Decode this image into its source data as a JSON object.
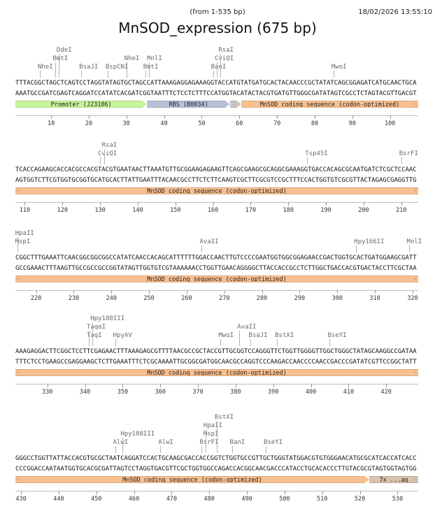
{
  "header": {
    "range": "(from 1-535 bp)",
    "timestamp": "18/02/2026 13:55:10",
    "title": "MnSOD_expression (675 bp)"
  },
  "colors": {
    "promoter": "#c6f59a",
    "rbs": "#b6c1d9",
    "spacer": "#c9c3c3",
    "cds": "#f9c08f",
    "tag": "#d9c2ad",
    "enzyme_text": "#6a6a6a"
  },
  "rows": [
    {
      "start": 1,
      "top": "TTTACGGCTAGCTCAGTCCTAGGTATAGTGCTAGCCATTAAAGAGGAGAAAGGTACCATGTATGATGCACTACAACCCGCTATATCAGCGGAGATCATGCAACTGCA",
      "bottom": "AAATGCCGATCGAGTCAGGATCCATATCACGATCGGTAATTTCTCCTCTTTCCATGGTACATACTACGTGATGTTGGGCGATATAGTCGCCTCTAGTACGTTGACGT",
      "enzymes": [
        {
          "name": "NheI",
          "pos": 7,
          "level": 0
        },
        {
          "name": "BmtI",
          "pos": 11,
          "level": 1
        },
        {
          "name": "DdeI",
          "pos": 12,
          "level": 2
        },
        {
          "name": "BsaJI",
          "pos": 18,
          "level": 0
        },
        {
          "name": "BspCNI",
          "pos": 25,
          "level": 0
        },
        {
          "name": "NheI",
          "pos": 30,
          "level": 1
        },
        {
          "name": "BmtI",
          "pos": 35,
          "level": 0
        },
        {
          "name": "MnlI",
          "pos": 36,
          "level": 1
        },
        {
          "name": "BanI",
          "pos": 53,
          "level": 0
        },
        {
          "name": "CviQI",
          "pos": 54,
          "level": 1
        },
        {
          "name": "RsaI",
          "pos": 55,
          "level": 2
        },
        {
          "name": "MwoI",
          "pos": 85,
          "level": 0
        }
      ],
      "features": [
        {
          "label": "Promoter (J23106)",
          "from": 1,
          "to": 35,
          "type": "promoter",
          "arrow": true
        },
        {
          "label": "RBS (B0034)",
          "from": 36,
          "to": 57,
          "type": "rbs",
          "arrow": true
        },
        {
          "label": "",
          "from": 58,
          "to": 60,
          "type": "spacer",
          "arrow": true
        },
        {
          "label": "MnSOD coding sequence (codon-optimized)",
          "from": 61,
          "to": 107,
          "type": "cds",
          "continues_right": true
        }
      ],
      "ticks": [
        10,
        20,
        30,
        40,
        50,
        60,
        70,
        80,
        90,
        100
      ]
    },
    {
      "start": 108,
      "top": "TCACCAGAAGCACCACGCCACGTACGTGAATAACTTAAATGTTGCGGAAGAGAAGTTCAGCGAAGCGCAGGCGAAAGGTGACCACAGCGCAATGATCTCGCTCCAAC",
      "bottom": "AGTGGTCTTCGTGGTGCGGTGCATGCACTTATTGAATTTACAACGCCTTCTCTTCAAGTCGCTTCGCGTCCGCTTTCCACTGGTGTCGCGTTACTAGAGCGAGGTTG",
      "enzymes": [
        {
          "name": "CviQI",
          "pos": 130,
          "level": 0
        },
        {
          "name": "RsaI",
          "pos": 131,
          "level": 1
        },
        {
          "name": "Tsp45I",
          "pos": 185,
          "level": 0
        },
        {
          "name": "BsrFI",
          "pos": 210,
          "level": 0
        }
      ],
      "features": [
        {
          "label": "MnSOD coding sequence (codon-optimized)",
          "from": 108,
          "to": 214,
          "type": "cds",
          "continues_left": true,
          "continues_right": true
        }
      ],
      "ticks": [
        110,
        120,
        130,
        140,
        150,
        160,
        170,
        180,
        190,
        200,
        210
      ]
    },
    {
      "start": 215,
      "top": "CGGCTTTGAAATTCAACGGCGGCGGCCATATCAACCACAGCATTTTTTGGACCAACTTGTCCCCGAATGGTGGCGGAGAACCGACTGGTGCACTGATGGAAGCGATT",
      "bottom": "GCCGAAACTTTAAGTTGCCGCCGCCGGTATAGTTGGTGTCGTAAAAAACCTGGTTGAACAGGGGCTTACCACCGCCTCTTGGCTGACCACGTGACTACCTTCGCTAA",
      "enzymes": [
        {
          "name": "MspI",
          "pos": 215,
          "level": 0
        },
        {
          "name": "HpaII",
          "pos": 215,
          "level": 1
        },
        {
          "name": "AvaII",
          "pos": 264,
          "level": 0
        },
        {
          "name": "Hpy166II",
          "pos": 305,
          "level": 0
        },
        {
          "name": "MnlI",
          "pos": 319,
          "level": 0
        }
      ],
      "features": [
        {
          "label": "MnSOD coding sequence (codon-optimized)",
          "from": 215,
          "to": 321,
          "type": "cds",
          "continues_left": true,
          "continues_right": true
        }
      ],
      "ticks": [
        220,
        230,
        240,
        250,
        260,
        270,
        280,
        290,
        300,
        310,
        320
      ]
    },
    {
      "start": 322,
      "top": "AAAGAGGACTTCGGCTCCTTCGAGAACTTTAAAGAGCGTTTTAACGCCGCTACCGTTGCGGTCCAGGGTTCTGGTTGGGGTTGGCTGGGCTATAGCAAGGCCGATAA",
      "bottom": "TTTCTCCTGAAGCCGAGGAAGCTCTTGAAATTTCTCGCAAAATTGCGGCGATGGCAACGCCAGGTCCCAAGACCAACCCCAACCGACCCGATATCGTTCCGGCTATT",
      "enzymes": [
        {
          "name": "TaqI",
          "pos": 341,
          "level": 0
        },
        {
          "name": "TaqαI",
          "pos": 341,
          "level": 1
        },
        {
          "name": "Hpy188III",
          "pos": 342,
          "level": 2
        },
        {
          "name": "HpyAV",
          "pos": 348,
          "level": 0
        },
        {
          "name": "MwoI",
          "pos": 376,
          "level": 0
        },
        {
          "name": "AvaII",
          "pos": 381,
          "level": 1
        },
        {
          "name": "BsaJI",
          "pos": 384,
          "level": 0
        },
        {
          "name": "BstXI",
          "pos": 391,
          "level": 0
        },
        {
          "name": "BseYI",
          "pos": 405,
          "level": 0
        }
      ],
      "features": [
        {
          "label": "MnSOD coding sequence (codon-optimized)",
          "from": 322,
          "to": 428,
          "type": "cds",
          "continues_left": true,
          "continues_right": true
        }
      ],
      "ticks": [
        330,
        340,
        350,
        360,
        370,
        380,
        390,
        400,
        410,
        420
      ]
    },
    {
      "start": 429,
      "top": "GGGCCTGGTTATTACCACGTGCGCTAATCAGGATCCACTGCAAGCGACCACCGGTCTGGTGCCGTTGCTGGGTATGGACGTGTGGGAACATGCGCATCACCATCACC",
      "bottom": "CCCGGACCAATAATGGTGCACGCGATTAGTCCTAGGTGACGTTCGCTGGTGGCCAGACCACGGCAACGACCCATACCTGCACACCCTTGTACGCGTAGTGGTAGTGG",
      "enzymes": [
        {
          "name": "AlwI",
          "pos": 455,
          "level": 0
        },
        {
          "name": "Hpy188III",
          "pos": 457,
          "level": 1
        },
        {
          "name": "AlwI",
          "pos": 467,
          "level": 0
        },
        {
          "name": "BsrFI",
          "pos": 478,
          "level": 0
        },
        {
          "name": "MspI",
          "pos": 479,
          "level": 1
        },
        {
          "name": "HpaII",
          "pos": 479,
          "level": 2
        },
        {
          "name": "BstXI",
          "pos": 482,
          "level": 3
        },
        {
          "name": "BanI",
          "pos": 486,
          "level": 0
        },
        {
          "name": "BseYI",
          "pos": 495,
          "level": 0
        }
      ],
      "features": [
        {
          "label": "MnSOD coding sequence (codon-optimized)",
          "from": 429,
          "to": 522,
          "type": "cds",
          "continues_left": true,
          "arrow": true
        },
        {
          "label": "7x ...ag",
          "from": 523,
          "to": 535,
          "type": "tag",
          "continues_right": true
        }
      ],
      "ticks": [
        430,
        440,
        450,
        460,
        470,
        480,
        490,
        500,
        510,
        520,
        530
      ]
    }
  ]
}
